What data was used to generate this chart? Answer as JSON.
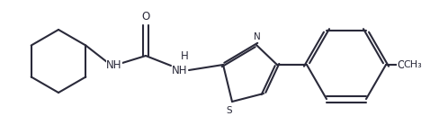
{
  "bg_color": "#ffffff",
  "line_color": "#2a2a3a",
  "line_width": 1.5,
  "figsize": [
    4.89,
    1.39
  ],
  "dpi": 100,
  "xlim": [
    0,
    489
  ],
  "ylim": [
    0,
    139
  ]
}
